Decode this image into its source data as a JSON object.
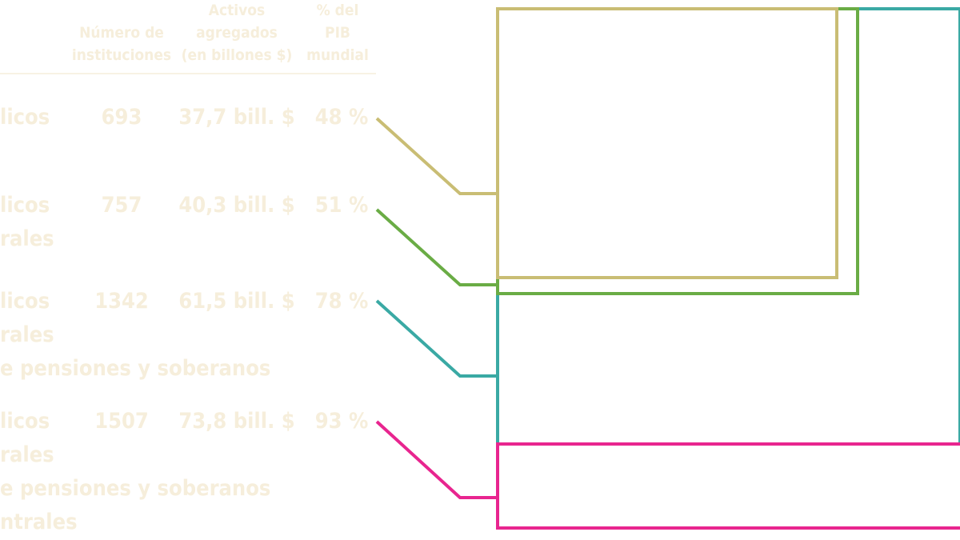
{
  "table": {
    "header": [
      "Número de instituciones",
      "Activos agregados (en billones $)",
      "% del PIB mundial"
    ],
    "header_lines": [
      [
        "Número de",
        "instituciones"
      ],
      [
        "Activos",
        "agregados",
        "(en billones $)"
      ],
      [
        "% del",
        "PIB",
        "mundial"
      ]
    ],
    "rows": [
      {
        "label": [
          "licos"
        ],
        "count": "693",
        "assets": "37,7 bill. $",
        "gdp": "48 %"
      },
      {
        "label": [
          "licos",
          "rales"
        ],
        "count": "757",
        "assets": "40,3 bill. $",
        "gdp": "51 %"
      },
      {
        "label": [
          "licos",
          "rales",
          "e pensiones y soberanos"
        ],
        "count": "1342",
        "assets": "61,5 bill. $",
        "gdp": "78 %"
      },
      {
        "label": [
          "licos",
          "rales",
          "e pensiones y soberanos",
          "ntrales"
        ],
        "count": "1507",
        "assets": "73,8 bill. $",
        "gdp": "93 %"
      }
    ]
  }
}
